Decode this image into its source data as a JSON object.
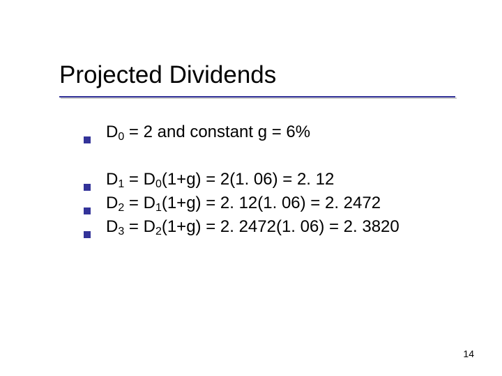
{
  "title": "Projected Dividends",
  "bullets": {
    "b0": {
      "var": "D",
      "sub": "0",
      "rest": " = 2 and constant g = 6%"
    },
    "b1": {
      "var": "D",
      "sub": "1",
      "mid": " = D",
      "sub2": "0",
      "rest": "(1+g) = 2(1. 06) = 2. 12"
    },
    "b2": {
      "var": "D",
      "sub": "2",
      "mid": " = D",
      "sub2": "1",
      "rest": "(1+g) = 2. 12(1. 06) = 2. 2472"
    },
    "b3": {
      "var": "D",
      "sub": "3",
      "mid": " = D",
      "sub2": "2",
      "rest": "(1+g) = 2. 2472(1. 06) = 2. 3820"
    }
  },
  "page_number": "14",
  "colors": {
    "accent": "#333399",
    "text": "#000000",
    "background": "#ffffff",
    "shadow": "#cccccc"
  },
  "typography": {
    "title_fontsize": 35,
    "body_fontsize": 24,
    "sub_fontsize": 16,
    "pagenum_fontsize": 14,
    "family": "Verdana"
  }
}
